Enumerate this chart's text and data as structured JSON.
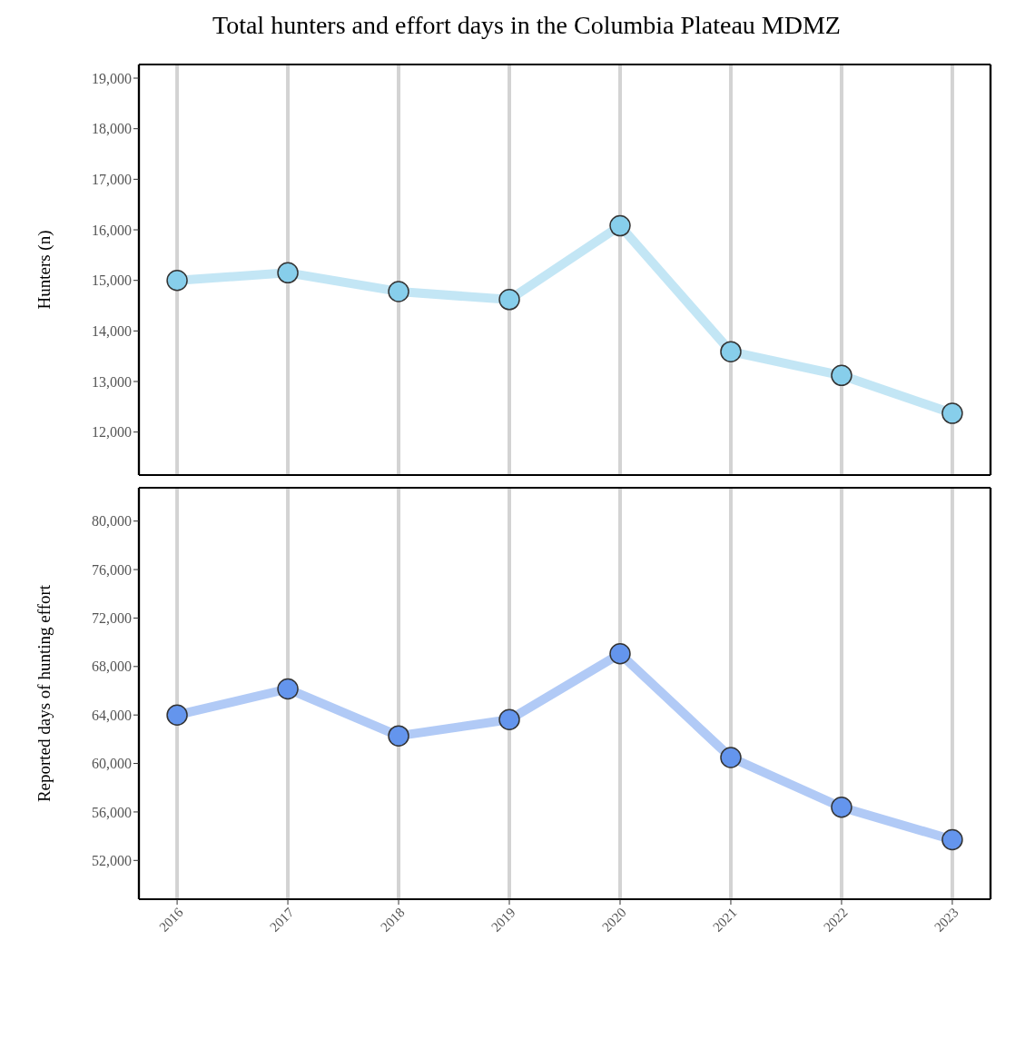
{
  "chart_data": [
    {
      "type": "line",
      "title": "Total hunters and effort days in the Columbia Plateau MDMZ",
      "ylabel": "Hunters (n)",
      "categories": [
        "2016",
        "2017",
        "2018",
        "2019",
        "2020",
        "2021",
        "2022",
        "2023"
      ],
      "series": [
        {
          "color": "#87ceeb",
          "values": [
            15000,
            15150,
            14780,
            14620,
            16080,
            13590,
            13120,
            12370
          ]
        }
      ],
      "ylim": [
        11150,
        19270
      ],
      "yticks": [
        {
          "value": 12000,
          "label": "12,000"
        },
        {
          "value": 13000,
          "label": "13,000"
        },
        {
          "value": 14000,
          "label": "14,000"
        },
        {
          "value": 15000,
          "label": "15,000"
        },
        {
          "value": 16000,
          "label": "16,000"
        },
        {
          "value": 17000,
          "label": "17,000"
        },
        {
          "value": 18000,
          "label": "18,000"
        },
        {
          "value": 19000,
          "label": "19,000"
        }
      ],
      "grid": "x",
      "marker": "circle",
      "tick_labels": "y",
      "legend": false
    },
    {
      "type": "line",
      "ylabel": "Reported days of hunting effort",
      "categories": [
        "2016",
        "2017",
        "2018",
        "2019",
        "2020",
        "2021",
        "2022",
        "2023"
      ],
      "series": [
        {
          "color": "#6495ed",
          "values": [
            64000,
            66150,
            62280,
            63620,
            69050,
            60490,
            56390,
            53710
          ]
        }
      ],
      "ylim": [
        48800,
        82750
      ],
      "yticks": [
        {
          "value": 52000,
          "label": "52,000"
        },
        {
          "value": 56000,
          "label": "56,000"
        },
        {
          "value": 60000,
          "label": "60,000"
        },
        {
          "value": 64000,
          "label": "64,000"
        },
        {
          "value": 68000,
          "label": "68,000"
        },
        {
          "value": 72000,
          "label": "72,000"
        },
        {
          "value": 76000,
          "label": "76,000"
        },
        {
          "value": 80000,
          "label": "80,000"
        }
      ],
      "grid": "x",
      "marker": "circle",
      "legend": false
    }
  ]
}
